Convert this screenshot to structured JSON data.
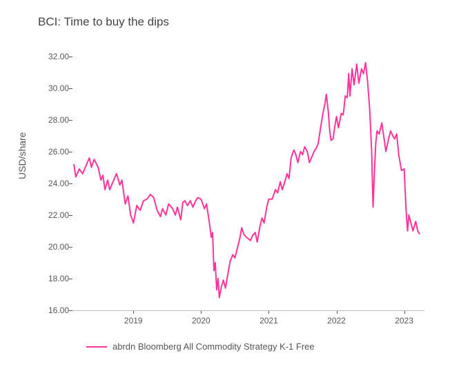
{
  "chart": {
    "type": "line",
    "title": "BCI: Time to buy the dips",
    "title_fontsize": 17,
    "title_color": "#444444",
    "ylabel": "USD/share",
    "label_fontsize": 14,
    "label_color": "#555555",
    "background_color": "#ffffff",
    "axis_color": "#bbbbbb",
    "tick_color": "#555555",
    "tick_fontsize": 12,
    "line_color": "#ff3399",
    "line_width": 2,
    "legend": {
      "label": "abrdn Bloomberg All Commodity Strategy K-1 Free",
      "color": "#ff3399",
      "fontsize": 13,
      "position": "bottom"
    },
    "x_axis": {
      "type": "year",
      "min": 2018.1,
      "max": 2023.3,
      "ticks": [
        2019,
        2020,
        2021,
        2022,
        2023
      ],
      "tick_labels": [
        "2019",
        "2020",
        "2021",
        "2022",
        "2023"
      ]
    },
    "y_axis": {
      "min": 16.0,
      "max": 32.5,
      "ticks": [
        16.0,
        18.0,
        20.0,
        22.0,
        24.0,
        26.0,
        28.0,
        30.0,
        32.0
      ],
      "tick_labels": [
        "16.00",
        "18.00",
        "20.00",
        "22.00",
        "24.00",
        "26.00",
        "28.00",
        "30.00",
        "32.00"
      ]
    },
    "series": [
      {
        "name": "BCI",
        "color": "#ff3399",
        "data": [
          [
            2018.12,
            25.2
          ],
          [
            2018.15,
            24.4
          ],
          [
            2018.2,
            24.9
          ],
          [
            2018.25,
            24.6
          ],
          [
            2018.3,
            25.1
          ],
          [
            2018.35,
            25.6
          ],
          [
            2018.38,
            25.0
          ],
          [
            2018.42,
            25.5
          ],
          [
            2018.48,
            25.0
          ],
          [
            2018.52,
            24.2
          ],
          [
            2018.55,
            24.5
          ],
          [
            2018.58,
            23.6
          ],
          [
            2018.62,
            24.2
          ],
          [
            2018.65,
            23.6
          ],
          [
            2018.7,
            24.1
          ],
          [
            2018.75,
            24.6
          ],
          [
            2018.8,
            23.9
          ],
          [
            2018.83,
            24.2
          ],
          [
            2018.88,
            22.7
          ],
          [
            2018.92,
            23.2
          ],
          [
            2018.96,
            22.0
          ],
          [
            2019.0,
            21.5
          ],
          [
            2019.05,
            22.6
          ],
          [
            2019.1,
            22.3
          ],
          [
            2019.15,
            22.9
          ],
          [
            2019.2,
            23.0
          ],
          [
            2019.25,
            23.3
          ],
          [
            2019.3,
            23.1
          ],
          [
            2019.35,
            22.3
          ],
          [
            2019.4,
            21.9
          ],
          [
            2019.43,
            22.4
          ],
          [
            2019.48,
            22.0
          ],
          [
            2019.52,
            22.7
          ],
          [
            2019.58,
            22.4
          ],
          [
            2019.62,
            22.0
          ],
          [
            2019.65,
            22.5
          ],
          [
            2019.7,
            21.7
          ],
          [
            2019.73,
            22.8
          ],
          [
            2019.76,
            22.9
          ],
          [
            2019.8,
            22.6
          ],
          [
            2019.84,
            22.9
          ],
          [
            2019.88,
            22.5
          ],
          [
            2019.92,
            22.9
          ],
          [
            2019.95,
            23.1
          ],
          [
            2020.0,
            23.0
          ],
          [
            2020.05,
            22.4
          ],
          [
            2020.08,
            22.7
          ],
          [
            2020.12,
            21.6
          ],
          [
            2020.15,
            20.6
          ],
          [
            2020.17,
            20.9
          ],
          [
            2020.19,
            18.5
          ],
          [
            2020.21,
            19.0
          ],
          [
            2020.23,
            17.3
          ],
          [
            2020.25,
            18.0
          ],
          [
            2020.27,
            16.8
          ],
          [
            2020.3,
            17.5
          ],
          [
            2020.33,
            17.9
          ],
          [
            2020.36,
            17.4
          ],
          [
            2020.4,
            18.4
          ],
          [
            2020.43,
            19.1
          ],
          [
            2020.47,
            19.5
          ],
          [
            2020.5,
            19.3
          ],
          [
            2020.53,
            19.8
          ],
          [
            2020.57,
            20.5
          ],
          [
            2020.6,
            21.2
          ],
          [
            2020.63,
            20.8
          ],
          [
            2020.67,
            20.6
          ],
          [
            2020.7,
            20.5
          ],
          [
            2020.73,
            20.4
          ],
          [
            2020.76,
            20.7
          ],
          [
            2020.8,
            20.9
          ],
          [
            2020.83,
            20.3
          ],
          [
            2020.87,
            21.3
          ],
          [
            2020.9,
            21.8
          ],
          [
            2020.93,
            21.5
          ],
          [
            2020.97,
            22.5
          ],
          [
            2021.0,
            23.0
          ],
          [
            2021.05,
            23.0
          ],
          [
            2021.1,
            23.6
          ],
          [
            2021.13,
            23.4
          ],
          [
            2021.17,
            24.1
          ],
          [
            2021.2,
            23.6
          ],
          [
            2021.23,
            24.0
          ],
          [
            2021.27,
            24.6
          ],
          [
            2021.3,
            24.3
          ],
          [
            2021.33,
            25.6
          ],
          [
            2021.37,
            26.1
          ],
          [
            2021.4,
            25.8
          ],
          [
            2021.43,
            25.3
          ],
          [
            2021.47,
            26.0
          ],
          [
            2021.5,
            25.8
          ],
          [
            2021.53,
            26.3
          ],
          [
            2021.57,
            26.0
          ],
          [
            2021.6,
            25.3
          ],
          [
            2021.63,
            25.6
          ],
          [
            2021.67,
            26.0
          ],
          [
            2021.7,
            26.2
          ],
          [
            2021.73,
            26.5
          ],
          [
            2021.77,
            27.6
          ],
          [
            2021.8,
            28.4
          ],
          [
            2021.83,
            29.0
          ],
          [
            2021.85,
            29.6
          ],
          [
            2021.88,
            28.5
          ],
          [
            2021.9,
            27.3
          ],
          [
            2021.92,
            26.7
          ],
          [
            2021.95,
            26.8
          ],
          [
            2021.98,
            27.7
          ],
          [
            2022.0,
            28.2
          ],
          [
            2022.03,
            27.5
          ],
          [
            2022.07,
            28.4
          ],
          [
            2022.1,
            28.3
          ],
          [
            2022.13,
            29.5
          ],
          [
            2022.16,
            29.4
          ],
          [
            2022.18,
            30.9
          ],
          [
            2022.2,
            29.5
          ],
          [
            2022.23,
            31.2
          ],
          [
            2022.26,
            30.2
          ],
          [
            2022.3,
            31.5
          ],
          [
            2022.33,
            30.3
          ],
          [
            2022.37,
            31.2
          ],
          [
            2022.4,
            30.9
          ],
          [
            2022.43,
            31.6
          ],
          [
            2022.46,
            30.4
          ],
          [
            2022.49,
            28.7
          ],
          [
            2022.52,
            26.0
          ],
          [
            2022.54,
            22.5
          ],
          [
            2022.56,
            24.6
          ],
          [
            2022.58,
            26.5
          ],
          [
            2022.6,
            27.3
          ],
          [
            2022.63,
            27.1
          ],
          [
            2022.67,
            27.8
          ],
          [
            2022.7,
            26.9
          ],
          [
            2022.73,
            26.0
          ],
          [
            2022.77,
            26.8
          ],
          [
            2022.8,
            27.3
          ],
          [
            2022.83,
            27.0
          ],
          [
            2022.86,
            26.8
          ],
          [
            2022.89,
            27.1
          ],
          [
            2022.92,
            25.8
          ],
          [
            2022.94,
            25.3
          ],
          [
            2022.96,
            24.8
          ],
          [
            2023.0,
            24.9
          ],
          [
            2023.03,
            22.2
          ],
          [
            2023.05,
            21.0
          ],
          [
            2023.07,
            22.0
          ],
          [
            2023.1,
            21.5
          ],
          [
            2023.13,
            21.0
          ],
          [
            2023.17,
            21.6
          ],
          [
            2023.2,
            21.0
          ],
          [
            2023.23,
            20.8
          ]
        ]
      }
    ]
  }
}
